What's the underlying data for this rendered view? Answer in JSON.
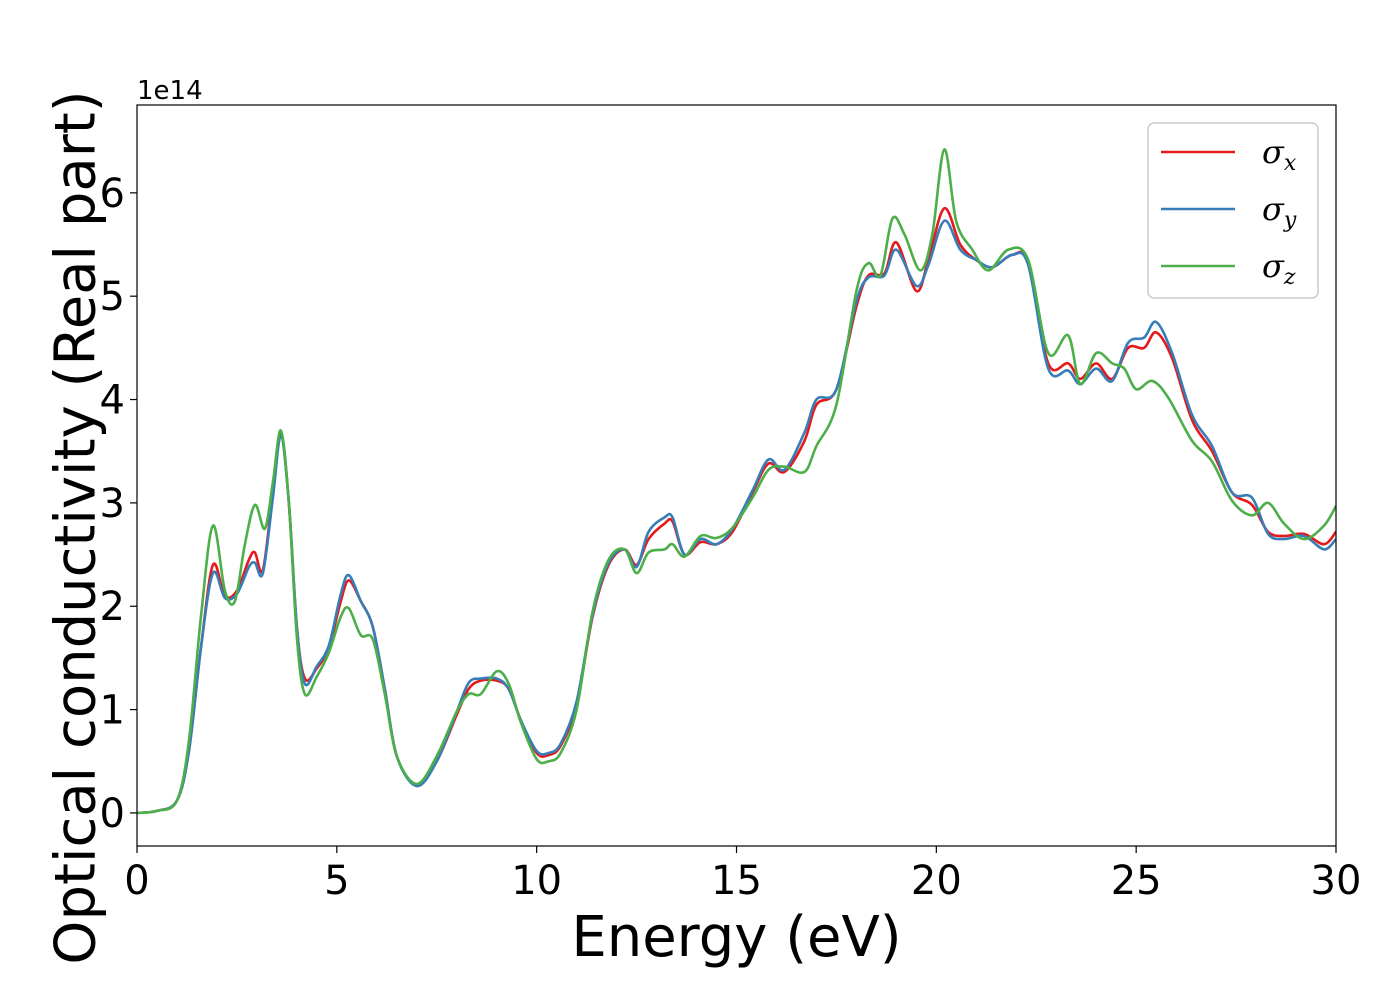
{
  "chart_data": {
    "type": "line",
    "xlabel": "Energy (eV)",
    "ylabel": "Optical conductivity (Real part)",
    "y_offset_label": "1e14",
    "xlim": [
      0,
      30
    ],
    "ylim": [
      -0.32,
      6.85
    ],
    "x_ticks": [
      0,
      5,
      10,
      15,
      20,
      25,
      30
    ],
    "y_ticks": [
      0,
      1,
      2,
      3,
      4,
      5,
      6
    ],
    "grid": false,
    "legend_position": "top-right",
    "series": [
      {
        "name": "σx",
        "symbol": "σ",
        "subscript": "x",
        "color": "#e41a1c",
        "points": [
          [
            0,
            0
          ],
          [
            0.5,
            0.02
          ],
          [
            1.0,
            0.12
          ],
          [
            1.3,
            0.6
          ],
          [
            1.6,
            1.6
          ],
          [
            1.9,
            2.4
          ],
          [
            2.2,
            2.1
          ],
          [
            2.5,
            2.15
          ],
          [
            2.8,
            2.45
          ],
          [
            2.95,
            2.52
          ],
          [
            3.15,
            2.35
          ],
          [
            3.4,
            3.1
          ],
          [
            3.6,
            3.68
          ],
          [
            3.8,
            3.0
          ],
          [
            4.0,
            1.8
          ],
          [
            4.2,
            1.3
          ],
          [
            4.5,
            1.4
          ],
          [
            4.8,
            1.6
          ],
          [
            5.1,
            2.05
          ],
          [
            5.3,
            2.25
          ],
          [
            5.6,
            2.05
          ],
          [
            5.9,
            1.8
          ],
          [
            6.2,
            1.2
          ],
          [
            6.5,
            0.55
          ],
          [
            7.0,
            0.27
          ],
          [
            7.5,
            0.5
          ],
          [
            8.0,
            0.95
          ],
          [
            8.3,
            1.2
          ],
          [
            8.6,
            1.28
          ],
          [
            9.0,
            1.28
          ],
          [
            9.3,
            1.2
          ],
          [
            9.6,
            0.9
          ],
          [
            10.0,
            0.58
          ],
          [
            10.3,
            0.56
          ],
          [
            10.6,
            0.65
          ],
          [
            11.0,
            1.05
          ],
          [
            11.4,
            1.9
          ],
          [
            11.8,
            2.4
          ],
          [
            12.2,
            2.55
          ],
          [
            12.5,
            2.4
          ],
          [
            12.8,
            2.65
          ],
          [
            13.2,
            2.8
          ],
          [
            13.4,
            2.82
          ],
          [
            13.7,
            2.5
          ],
          [
            14.1,
            2.62
          ],
          [
            14.5,
            2.6
          ],
          [
            14.9,
            2.72
          ],
          [
            15.4,
            3.1
          ],
          [
            15.8,
            3.38
          ],
          [
            16.2,
            3.3
          ],
          [
            16.7,
            3.6
          ],
          [
            17.0,
            3.95
          ],
          [
            17.5,
            4.1
          ],
          [
            18.0,
            4.9
          ],
          [
            18.3,
            5.2
          ],
          [
            18.7,
            5.22
          ],
          [
            19.0,
            5.52
          ],
          [
            19.5,
            5.05
          ],
          [
            19.8,
            5.35
          ],
          [
            20.2,
            5.85
          ],
          [
            20.6,
            5.5
          ],
          [
            21.0,
            5.35
          ],
          [
            21.4,
            5.28
          ],
          [
            21.9,
            5.4
          ],
          [
            22.3,
            5.32
          ],
          [
            22.8,
            4.35
          ],
          [
            23.3,
            4.35
          ],
          [
            23.6,
            4.2
          ],
          [
            24.0,
            4.35
          ],
          [
            24.4,
            4.2
          ],
          [
            24.8,
            4.5
          ],
          [
            25.2,
            4.5
          ],
          [
            25.5,
            4.65
          ],
          [
            25.9,
            4.4
          ],
          [
            26.4,
            3.8
          ],
          [
            26.9,
            3.5
          ],
          [
            27.4,
            3.1
          ],
          [
            27.9,
            2.98
          ],
          [
            28.3,
            2.72
          ],
          [
            28.7,
            2.68
          ],
          [
            29.2,
            2.7
          ],
          [
            29.7,
            2.6
          ],
          [
            30.0,
            2.72
          ]
        ]
      },
      {
        "name": "σy",
        "symbol": "σ",
        "subscript": "y",
        "color": "#377eb8",
        "points": [
          [
            0,
            0
          ],
          [
            0.5,
            0.02
          ],
          [
            1.0,
            0.12
          ],
          [
            1.3,
            0.6
          ],
          [
            1.6,
            1.6
          ],
          [
            1.9,
            2.32
          ],
          [
            2.2,
            2.08
          ],
          [
            2.5,
            2.12
          ],
          [
            2.8,
            2.38
          ],
          [
            2.95,
            2.42
          ],
          [
            3.15,
            2.32
          ],
          [
            3.4,
            3.05
          ],
          [
            3.6,
            3.65
          ],
          [
            3.8,
            3.0
          ],
          [
            4.0,
            1.8
          ],
          [
            4.2,
            1.25
          ],
          [
            4.5,
            1.42
          ],
          [
            4.8,
            1.62
          ],
          [
            5.1,
            2.12
          ],
          [
            5.3,
            2.3
          ],
          [
            5.6,
            2.05
          ],
          [
            5.9,
            1.8
          ],
          [
            6.2,
            1.2
          ],
          [
            6.5,
            0.55
          ],
          [
            7.0,
            0.26
          ],
          [
            7.5,
            0.5
          ],
          [
            8.0,
            0.98
          ],
          [
            8.3,
            1.26
          ],
          [
            8.6,
            1.3
          ],
          [
            9.0,
            1.3
          ],
          [
            9.3,
            1.2
          ],
          [
            9.6,
            0.9
          ],
          [
            10.0,
            0.6
          ],
          [
            10.3,
            0.58
          ],
          [
            10.6,
            0.67
          ],
          [
            11.0,
            1.08
          ],
          [
            11.4,
            1.92
          ],
          [
            11.8,
            2.42
          ],
          [
            12.2,
            2.55
          ],
          [
            12.5,
            2.38
          ],
          [
            12.8,
            2.72
          ],
          [
            13.2,
            2.86
          ],
          [
            13.4,
            2.86
          ],
          [
            13.7,
            2.5
          ],
          [
            14.1,
            2.65
          ],
          [
            14.5,
            2.6
          ],
          [
            14.9,
            2.75
          ],
          [
            15.4,
            3.12
          ],
          [
            15.8,
            3.42
          ],
          [
            16.2,
            3.32
          ],
          [
            16.7,
            3.68
          ],
          [
            17.0,
            4.0
          ],
          [
            17.5,
            4.1
          ],
          [
            18.0,
            4.95
          ],
          [
            18.3,
            5.18
          ],
          [
            18.7,
            5.2
          ],
          [
            19.0,
            5.45
          ],
          [
            19.5,
            5.1
          ],
          [
            19.8,
            5.3
          ],
          [
            20.2,
            5.73
          ],
          [
            20.6,
            5.45
          ],
          [
            21.0,
            5.35
          ],
          [
            21.4,
            5.28
          ],
          [
            21.9,
            5.4
          ],
          [
            22.3,
            5.3
          ],
          [
            22.8,
            4.3
          ],
          [
            23.3,
            4.28
          ],
          [
            23.6,
            4.15
          ],
          [
            24.0,
            4.3
          ],
          [
            24.4,
            4.18
          ],
          [
            24.8,
            4.55
          ],
          [
            25.2,
            4.6
          ],
          [
            25.5,
            4.75
          ],
          [
            25.9,
            4.45
          ],
          [
            26.4,
            3.85
          ],
          [
            26.9,
            3.55
          ],
          [
            27.4,
            3.1
          ],
          [
            27.9,
            3.05
          ],
          [
            28.3,
            2.7
          ],
          [
            28.7,
            2.65
          ],
          [
            29.2,
            2.68
          ],
          [
            29.7,
            2.55
          ],
          [
            30.0,
            2.65
          ]
        ]
      },
      {
        "name": "σz",
        "symbol": "σ",
        "subscript": "z",
        "color": "#4daf4a",
        "points": [
          [
            0,
            0
          ],
          [
            0.5,
            0.02
          ],
          [
            1.0,
            0.12
          ],
          [
            1.3,
            0.7
          ],
          [
            1.6,
            1.9
          ],
          [
            1.9,
            2.78
          ],
          [
            2.2,
            2.15
          ],
          [
            2.45,
            2.05
          ],
          [
            2.7,
            2.6
          ],
          [
            2.95,
            2.98
          ],
          [
            3.2,
            2.75
          ],
          [
            3.4,
            3.2
          ],
          [
            3.6,
            3.7
          ],
          [
            3.8,
            3.0
          ],
          [
            4.0,
            1.7
          ],
          [
            4.2,
            1.15
          ],
          [
            4.5,
            1.32
          ],
          [
            4.8,
            1.55
          ],
          [
            5.1,
            1.9
          ],
          [
            5.3,
            1.98
          ],
          [
            5.6,
            1.72
          ],
          [
            5.9,
            1.68
          ],
          [
            6.2,
            1.15
          ],
          [
            6.5,
            0.55
          ],
          [
            7.0,
            0.28
          ],
          [
            7.5,
            0.55
          ],
          [
            8.0,
            0.98
          ],
          [
            8.3,
            1.15
          ],
          [
            8.6,
            1.15
          ],
          [
            9.0,
            1.37
          ],
          [
            9.3,
            1.25
          ],
          [
            9.6,
            0.88
          ],
          [
            10.0,
            0.52
          ],
          [
            10.3,
            0.5
          ],
          [
            10.6,
            0.58
          ],
          [
            11.0,
            1.0
          ],
          [
            11.4,
            1.95
          ],
          [
            11.8,
            2.45
          ],
          [
            12.2,
            2.55
          ],
          [
            12.5,
            2.32
          ],
          [
            12.8,
            2.52
          ],
          [
            13.2,
            2.55
          ],
          [
            13.4,
            2.6
          ],
          [
            13.7,
            2.48
          ],
          [
            14.1,
            2.68
          ],
          [
            14.5,
            2.66
          ],
          [
            14.9,
            2.76
          ],
          [
            15.4,
            3.05
          ],
          [
            15.8,
            3.32
          ],
          [
            16.2,
            3.35
          ],
          [
            16.7,
            3.3
          ],
          [
            17.0,
            3.55
          ],
          [
            17.5,
            3.95
          ],
          [
            18.0,
            5.05
          ],
          [
            18.3,
            5.32
          ],
          [
            18.6,
            5.2
          ],
          [
            18.9,
            5.75
          ],
          [
            19.2,
            5.6
          ],
          [
            19.6,
            5.25
          ],
          [
            19.9,
            5.6
          ],
          [
            20.2,
            6.42
          ],
          [
            20.5,
            5.72
          ],
          [
            20.9,
            5.45
          ],
          [
            21.3,
            5.25
          ],
          [
            21.8,
            5.45
          ],
          [
            22.3,
            5.35
          ],
          [
            22.8,
            4.45
          ],
          [
            23.3,
            4.62
          ],
          [
            23.6,
            4.15
          ],
          [
            24.0,
            4.45
          ],
          [
            24.4,
            4.35
          ],
          [
            24.7,
            4.3
          ],
          [
            25.0,
            4.1
          ],
          [
            25.4,
            4.18
          ],
          [
            25.8,
            4.02
          ],
          [
            26.4,
            3.6
          ],
          [
            26.9,
            3.4
          ],
          [
            27.4,
            3.02
          ],
          [
            27.9,
            2.88
          ],
          [
            28.3,
            3.0
          ],
          [
            28.7,
            2.8
          ],
          [
            29.2,
            2.65
          ],
          [
            29.7,
            2.78
          ],
          [
            30.0,
            2.97
          ]
        ]
      }
    ]
  }
}
